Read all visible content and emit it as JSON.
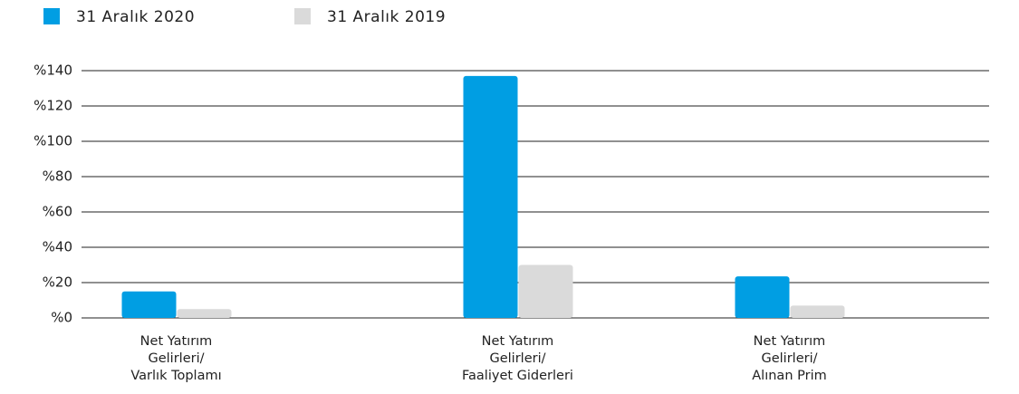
{
  "chart_data": {
    "type": "bar",
    "categories": [
      [
        "Net Yatırım",
        "Gelirleri/",
        "Varlık Toplamı"
      ],
      [
        "Net Yatırım",
        "Gelirleri/",
        "Faaliyet Giderleri"
      ],
      [
        "Net Yatırım",
        "Gelirleri/",
        "Alınan Prim"
      ]
    ],
    "series": [
      {
        "name": "31 Aralık 2020",
        "color": "#009ee3",
        "values": [
          15,
          137,
          23.5
        ]
      },
      {
        "name": "31 Aralık 2019",
        "color": "#dadada",
        "values": [
          5,
          30,
          7
        ]
      }
    ],
    "ylim": [
      0,
      140
    ],
    "yticks": [
      {
        "value": 0,
        "label": "%0"
      },
      {
        "value": 20,
        "label": "%20"
      },
      {
        "value": 40,
        "label": "%40"
      },
      {
        "value": 60,
        "label": "%60"
      },
      {
        "value": 80,
        "label": "%80"
      },
      {
        "value": 100,
        "label": "%100"
      },
      {
        "value": 120,
        "label": "%120"
      },
      {
        "value": 140,
        "label": "%140"
      }
    ],
    "grid": true,
    "legend": "top-left"
  }
}
